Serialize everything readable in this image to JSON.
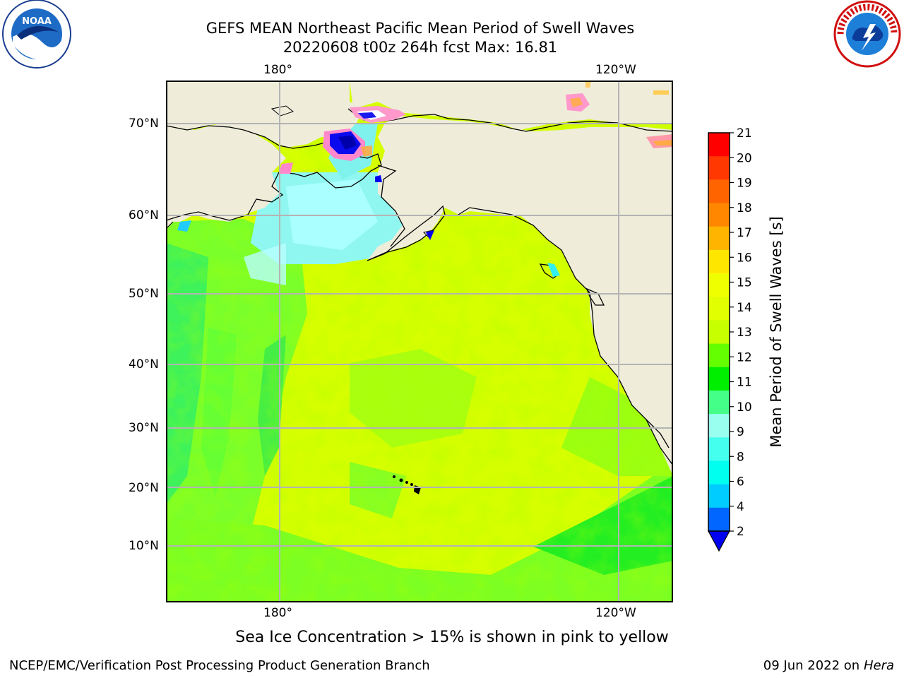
{
  "title": {
    "line1": "GEFS MEAN Northeast Pacific Mean Period of Swell Waves",
    "line2": "20220608 t00z 264h fcst   Max: 16.81"
  },
  "map": {
    "lat_labels": [
      "70°N",
      "60°N",
      "50°N",
      "40°N",
      "30°N",
      "20°N",
      "10°N"
    ],
    "lon_labels_top": [
      "180°",
      "120°W"
    ],
    "lon_labels_bottom": [
      "180°",
      "120°W"
    ],
    "features": [
      "Alaska",
      "Bering Sea",
      "Hawaii",
      "North America west coast"
    ],
    "colors": {
      "land": "#efedda",
      "grid": "#b4b4b4",
      "coast": "#000000"
    }
  },
  "colorbar": {
    "label": "Mean Period of Swell Waves [s]",
    "ticks": [
      "21",
      "20",
      "19",
      "18",
      "17",
      "16",
      "15",
      "14",
      "13",
      "12",
      "11",
      "10",
      "9",
      "8",
      "6",
      "4",
      "2"
    ],
    "colors": [
      "#ff0000",
      "#ff3700",
      "#ff6400",
      "#ff8700",
      "#ffb400",
      "#ffe600",
      "#f0ff00",
      "#e1ff00",
      "#c8ff00",
      "#64ff00",
      "#00ee00",
      "#44ff88",
      "#99ffee",
      "#44ffee",
      "#00ffee",
      "#00ccff",
      "#0066ff"
    ],
    "extend_color": "#0000ee"
  },
  "note": "Sea Ice Concentration > 15% is shown in pink to yellow",
  "footer": {
    "credit": "NCEP/EMC/Verification Post Processing Product Generation Branch",
    "date": "09 Jun 2022 on",
    "machine": "Hera"
  },
  "logos": {
    "left_text": "NOAA",
    "right_text": "NATIONAL WEATHER SERVICE"
  }
}
